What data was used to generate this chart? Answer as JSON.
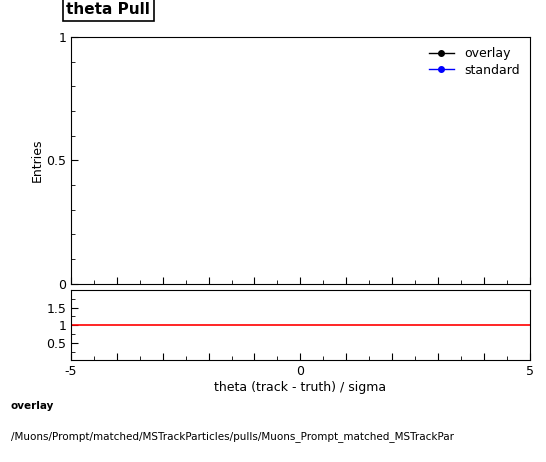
{
  "title": "theta Pull",
  "ylabel_main": "Entries",
  "xlabel": "theta (track - truth) / sigma",
  "xlim": [
    -5,
    5
  ],
  "ylim_main": [
    0,
    1
  ],
  "ylim_ratio": [
    0,
    2
  ],
  "ratio_yticks": [
    0.5,
    1.0,
    1.5
  ],
  "main_yticks": [
    0,
    0.5,
    1.0
  ],
  "main_yticklabels": [
    "0",
    "0.5",
    "1"
  ],
  "ratio_yticklabels": [
    "0.5",
    "1",
    "1.5"
  ],
  "xticks_major": [
    -5,
    -4,
    -3,
    -2,
    -1,
    0,
    1,
    2,
    3,
    4,
    5
  ],
  "xtick_labels": [
    "-5",
    "",
    "",
    "",
    "",
    "0",
    "",
    "",
    "",
    "",
    "5"
  ],
  "overlay_color": "#000000",
  "standard_color": "#0000ff",
  "ratio_line_color": "#ff0000",
  "ratio_line_y": 1.0,
  "legend_labels": [
    "overlay",
    "standard"
  ],
  "footer_line1": "overlay",
  "footer_line2": "/Muons/Prompt/matched/MSTrackParticles/pulls/Muons_Prompt_matched_MSTrackPar",
  "title_fontsize": 11,
  "axis_fontsize": 9,
  "legend_fontsize": 9,
  "footer_fontsize": 7.5,
  "background_color": "#ffffff"
}
